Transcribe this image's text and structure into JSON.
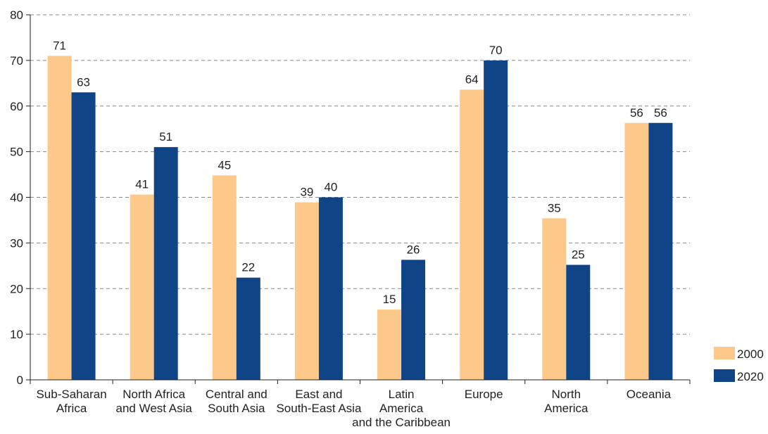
{
  "chart_data": {
    "type": "bar",
    "categories": [
      [
        "Sub-Saharan",
        "Africa"
      ],
      [
        "North Africa",
        "and West Asia"
      ],
      [
        "Central and",
        "South Asia"
      ],
      [
        "East and",
        "South-East Asia"
      ],
      [
        "Latin",
        "America",
        "and the Caribbean"
      ],
      [
        "Europe"
      ],
      [
        "North",
        "America"
      ],
      [
        "Oceania"
      ]
    ],
    "series": [
      {
        "name": "2000",
        "color": "#FDC98A",
        "values": [
          71,
          40.6,
          44.8,
          38.9,
          15.4,
          63.6,
          35.4,
          56.3
        ],
        "labels": [
          "71",
          "41",
          "45",
          "39",
          "15",
          "64",
          "35",
          "56"
        ]
      },
      {
        "name": "2020",
        "color": "#0F4487",
        "values": [
          63,
          51,
          22.4,
          40,
          26.3,
          70,
          25.2,
          56.3
        ],
        "labels": [
          "63",
          "51",
          "22",
          "40",
          "26",
          "70",
          "25",
          "56"
        ]
      }
    ],
    "yticks": [
      "0",
      "10",
      "20",
      "30",
      "40",
      "50",
      "60",
      "70",
      "80"
    ],
    "ylim": [
      0,
      80
    ],
    "grid": true,
    "legend_position": "bottom-right",
    "title": "",
    "xlabel": "",
    "ylabel": ""
  }
}
